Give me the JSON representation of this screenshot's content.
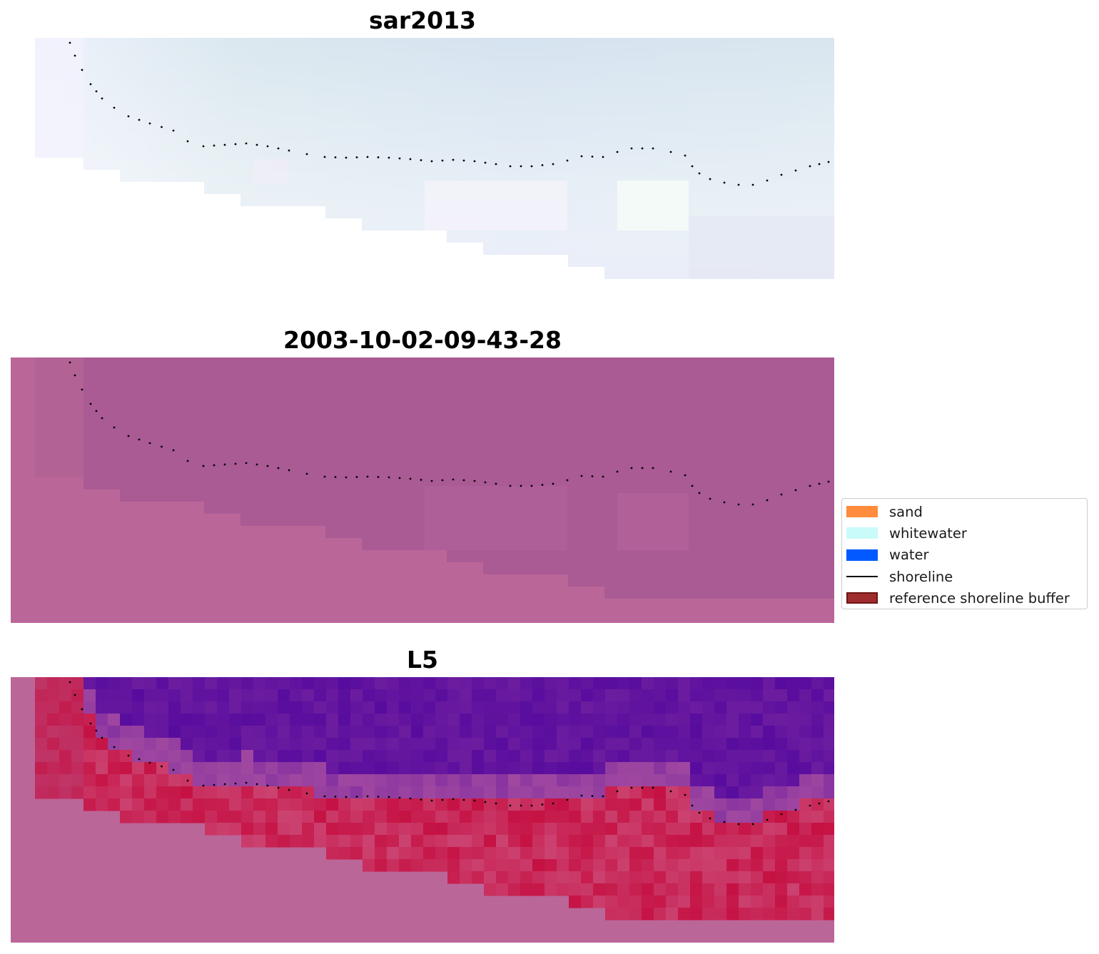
{
  "panels": [
    {
      "title": "sar2013",
      "image": "rgb-true-color"
    },
    {
      "title": "2003-10-02-09-43-28",
      "image": "classified-overlay"
    },
    {
      "title": "L5",
      "image": "water-index"
    }
  ],
  "legend": {
    "items": [
      {
        "label": "sand",
        "kind": "patch",
        "color": "#ff8c3c"
      },
      {
        "label": "whitewater",
        "kind": "patch",
        "color": "#c8fbfa"
      },
      {
        "label": "water",
        "kind": "patch",
        "color": "#005aff"
      },
      {
        "label": "shoreline",
        "kind": "line",
        "color": "#000000"
      },
      {
        "label": "reference shoreline buffer",
        "kind": "patch",
        "color": "#a02d2d",
        "edge": "#6e1414"
      }
    ]
  },
  "colors": {
    "overlay_base": "#bb6699",
    "overlay_dark": "#a95a92",
    "water_index_high": "#5a0aa0",
    "water_index_low": "#c0003a",
    "rgb_sky": "#d9e6f0"
  }
}
